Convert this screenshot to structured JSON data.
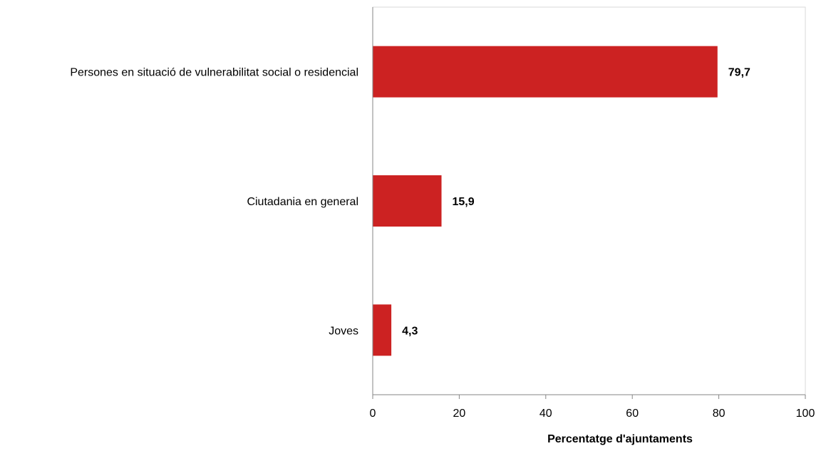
{
  "chart_data": {
    "type": "bar",
    "orientation": "horizontal",
    "categories": [
      "Persones en situació de vulnerabilitat social o residencial",
      "Ciutadania en general",
      "Joves"
    ],
    "values": [
      79.7,
      15.9,
      4.3
    ],
    "value_labels": [
      "79,7",
      "15,9",
      "4,3"
    ],
    "title": "",
    "xlabel": "Percentatge d'ajuntaments",
    "ylabel": "",
    "xlim": [
      0,
      100
    ],
    "x_ticks": [
      0,
      20,
      40,
      60,
      80,
      100
    ],
    "x_tick_labels": [
      "0",
      "20",
      "40",
      "60",
      "80",
      "100"
    ],
    "grid": false,
    "legend": "none",
    "bar_color": "#cc2222",
    "frame_color": "#d9d9d9",
    "axis_color": "#868686"
  }
}
